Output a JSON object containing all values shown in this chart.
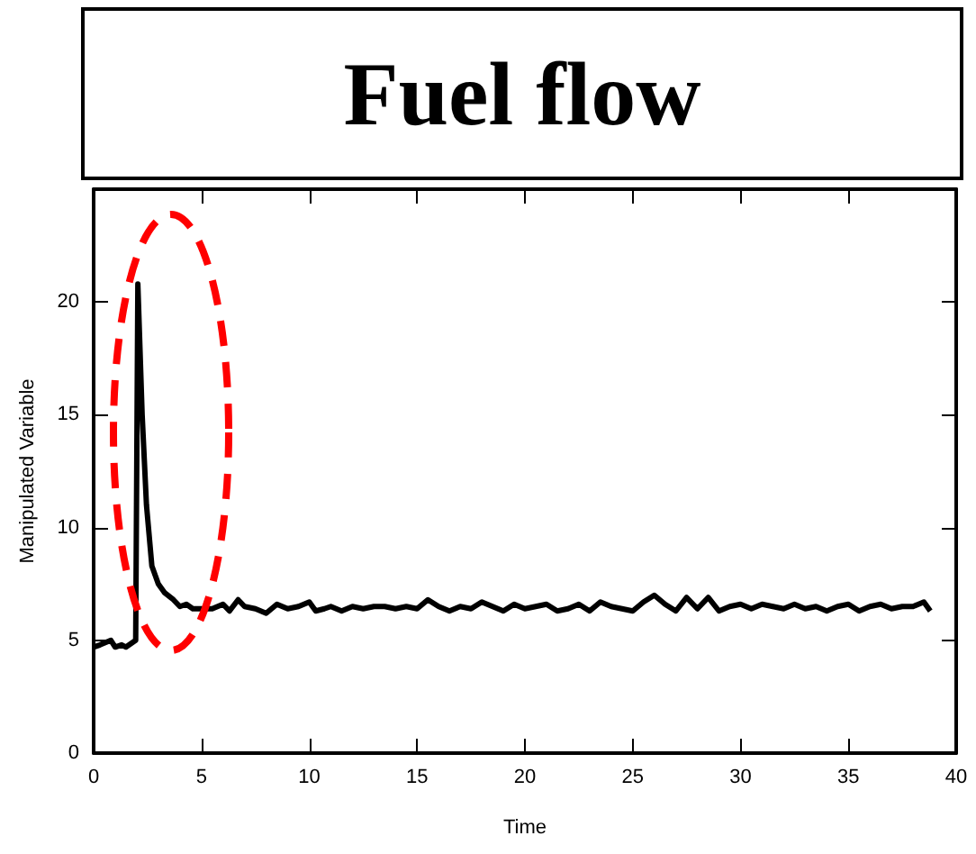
{
  "chart_data": {
    "type": "line",
    "title": "Fuel flow",
    "xlabel": "Time",
    "ylabel": "Manipulated Variable",
    "x": [
      0,
      0.3,
      0.8,
      1.0,
      1.3,
      1.5,
      1.8,
      1.95,
      2.05,
      2.25,
      2.45,
      2.7,
      3.0,
      3.3,
      3.7,
      4.0,
      4.3,
      4.6,
      5.0,
      5.5,
      6.0,
      6.3,
      6.7,
      7.0,
      7.5,
      8.0,
      8.5,
      9.0,
      9.5,
      10.0,
      10.3,
      10.7,
      11.0,
      11.5,
      12.0,
      12.5,
      13.0,
      13.5,
      14.0,
      14.5,
      15.0,
      15.5,
      16.0,
      16.5,
      17.0,
      17.5,
      18.0,
      18.5,
      19.0,
      19.5,
      20.0,
      20.5,
      21.0,
      21.5,
      22.0,
      22.5,
      23.0,
      23.5,
      24.0,
      24.5,
      25.0,
      25.5,
      26.0,
      26.5,
      27.0,
      27.5,
      28.0,
      28.5,
      29.0,
      29.5,
      30.0,
      30.5,
      31.0,
      31.5,
      32.0,
      32.5,
      33.0,
      33.5,
      34.0,
      34.5,
      35.0,
      35.5,
      36.0,
      36.5,
      37.0,
      37.5,
      38.0,
      38.5,
      38.8
    ],
    "series": [
      {
        "color": "#000000",
        "values": [
          4.7,
          4.8,
          5.0,
          4.7,
          4.8,
          4.7,
          4.9,
          5.0,
          20.8,
          15.0,
          11.0,
          8.3,
          7.5,
          7.1,
          6.8,
          6.5,
          6.6,
          6.4,
          6.4,
          6.4,
          6.6,
          6.3,
          6.8,
          6.5,
          6.4,
          6.2,
          6.6,
          6.4,
          6.5,
          6.7,
          6.3,
          6.4,
          6.5,
          6.3,
          6.5,
          6.4,
          6.5,
          6.5,
          6.4,
          6.5,
          6.4,
          6.8,
          6.5,
          6.3,
          6.5,
          6.4,
          6.7,
          6.5,
          6.3,
          6.6,
          6.4,
          6.5,
          6.6,
          6.3,
          6.4,
          6.6,
          6.3,
          6.7,
          6.5,
          6.4,
          6.3,
          6.7,
          7.0,
          6.6,
          6.3,
          6.9,
          6.4,
          6.9,
          6.3,
          6.5,
          6.6,
          6.4,
          6.6,
          6.5,
          6.4,
          6.6,
          6.4,
          6.5,
          6.3,
          6.5,
          6.6,
          6.3,
          6.5,
          6.6,
          6.4,
          6.5,
          6.5,
          6.7,
          6.3
        ]
      }
    ],
    "xlim": [
      0,
      40
    ],
    "xticks": [
      0,
      5,
      10,
      15,
      20,
      25,
      30,
      35,
      40
    ],
    "ylim": [
      0,
      25
    ],
    "yticks": [
      0,
      5,
      10,
      15,
      20
    ],
    "marker": "none",
    "line_style": "solid"
  }
}
